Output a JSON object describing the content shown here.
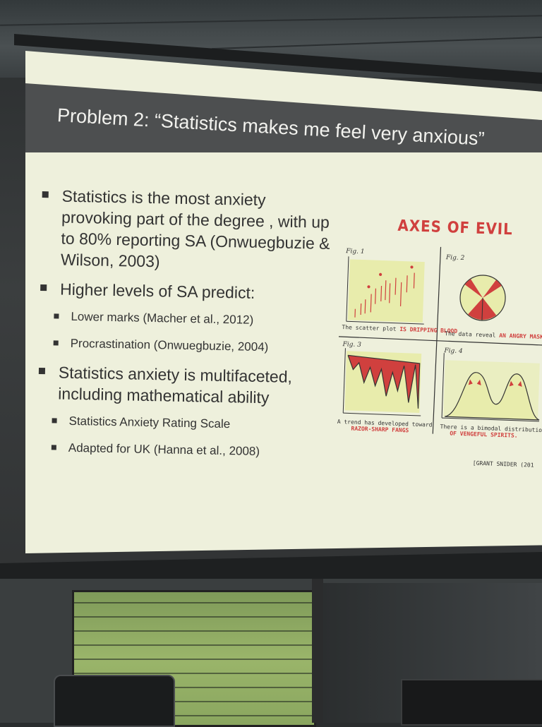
{
  "slide": {
    "title": "Problem 2: “Statistics makes me feel very anxious”",
    "bullets": [
      {
        "level": 1,
        "text": "Statistics is the most anxiety provoking part of the degree , with up to 80% reporting SA (Onwuegbuzie & Wilson, 2003)"
      },
      {
        "level": 1,
        "text": "Higher levels of SA predict:"
      },
      {
        "level": 2,
        "text": "Lower marks (Macher et al., 2012)"
      },
      {
        "level": 2,
        "text": "Procrastination (Onwuegbuzie, 2004)"
      },
      {
        "level": 1,
        "text": "Statistics anxiety is multifaceted, including mathematical ability"
      },
      {
        "level": 2,
        "text": "Statistics Anxiety Rating Scale"
      },
      {
        "level": 2,
        "text": "Adapted for UK (Hanna et al., 2008)"
      }
    ]
  },
  "cartoon": {
    "title": "AXES OF EVIL",
    "fig1_label": "Fig. 1",
    "fig2_label": "Fig. 2",
    "fig3_label": "Fig. 3",
    "fig4_label": "Fig. 4",
    "fig1_caption_plain": "The scatter plot",
    "fig1_caption_red": "IS DRIPPING BLOOD",
    "fig2_caption_plain": "The data reveal",
    "fig2_caption_red": "AN ANGRY MASK.",
    "fig3_caption_plain": "A trend has developed toward",
    "fig3_caption_red": "RAZOR-SHARP FANGS",
    "fig4_caption_plain": "There is a bimodal distribution",
    "fig4_caption_red": "OF VENGEFUL SPIRITS.",
    "credit": "[GRANT SNIDER (201"
  },
  "colors": {
    "slide_bg": "#eef0dc",
    "title_bar": "#4d4f50",
    "cartoon_red": "#d0403e",
    "cartoon_panel": "#e8ecac"
  }
}
